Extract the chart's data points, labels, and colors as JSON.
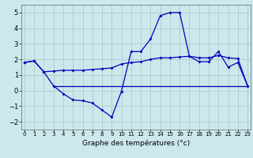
{
  "title": "Graphe des températures (°c)",
  "background_color": "#cce8ec",
  "grid_color": "#aacccc",
  "line_color": "#0000bb",
  "x_ticks": [
    0,
    1,
    2,
    3,
    4,
    5,
    6,
    7,
    8,
    9,
    10,
    11,
    12,
    13,
    14,
    15,
    16,
    17,
    18,
    19,
    20,
    21,
    22,
    23
  ],
  "y_ticks": [
    -2,
    -1,
    0,
    1,
    2,
    3,
    4,
    5
  ],
  "ylim": [
    -2.5,
    5.5
  ],
  "xlim": [
    -0.3,
    23.3
  ],
  "line1_x": [
    0,
    1,
    2,
    3,
    4,
    5,
    6,
    7,
    8,
    9,
    10,
    11,
    12,
    13,
    14,
    15,
    16,
    17,
    18,
    19,
    20,
    21,
    22,
    23
  ],
  "line1_y": [
    1.8,
    1.9,
    1.2,
    0.3,
    -0.2,
    -0.6,
    -0.65,
    -0.8,
    -1.25,
    -1.7,
    -0.05,
    2.5,
    2.5,
    3.3,
    4.8,
    5.0,
    5.0,
    2.2,
    1.85,
    1.85,
    2.5,
    1.5,
    1.8,
    0.3
  ],
  "line2_x": [
    0,
    1,
    2,
    3,
    4,
    5,
    6,
    7,
    8,
    9,
    10,
    11,
    12,
    13,
    14,
    15,
    16,
    17,
    18,
    19,
    20,
    21,
    22,
    23
  ],
  "line2_y": [
    1.8,
    1.9,
    1.2,
    1.25,
    1.3,
    1.3,
    1.3,
    1.35,
    1.4,
    1.45,
    1.7,
    1.8,
    1.85,
    2.0,
    2.1,
    2.1,
    2.15,
    2.2,
    2.1,
    2.1,
    2.25,
    2.1,
    2.05,
    0.3
  ],
  "line3_x": [
    3,
    23
  ],
  "line3_y": [
    0.3,
    0.3
  ]
}
